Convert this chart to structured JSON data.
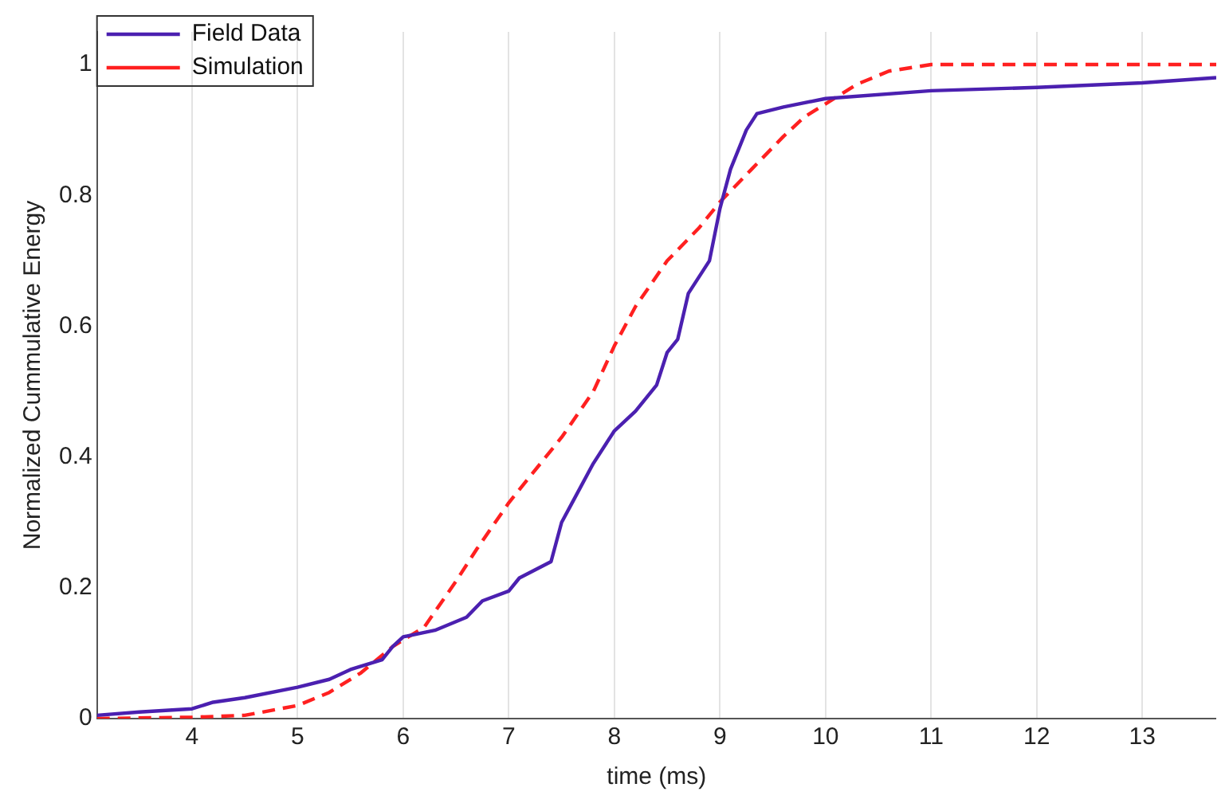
{
  "chart_data": {
    "type": "line",
    "xlabel": "time (ms)",
    "ylabel": "Normalized Cummulative Energy",
    "xlim": [
      3.1,
      13.7
    ],
    "ylim": [
      0,
      1.05
    ],
    "xticks": [
      4,
      5,
      6,
      7,
      8,
      9,
      10,
      11,
      12,
      13
    ],
    "yticks": [
      0,
      0.2,
      0.4,
      0.6,
      0.8,
      1
    ],
    "grid": "x",
    "legend": "top left",
    "marker": "none",
    "series": [
      {
        "name": "Field Data",
        "color": "#4b20b0",
        "line_style": "solid",
        "x": [
          3.1,
          3.5,
          4.0,
          4.2,
          4.5,
          5.0,
          5.3,
          5.5,
          5.8,
          5.9,
          6.0,
          6.3,
          6.6,
          6.75,
          7.0,
          7.1,
          7.4,
          7.5,
          7.6,
          7.8,
          8.0,
          8.2,
          8.4,
          8.5,
          8.6,
          8.7,
          8.9,
          9.0,
          9.1,
          9.25,
          9.35,
          9.6,
          10.0,
          11,
          12,
          13,
          13.7
        ],
        "values": [
          0.005,
          0.01,
          0.015,
          0.025,
          0.032,
          0.048,
          0.06,
          0.075,
          0.09,
          0.11,
          0.125,
          0.135,
          0.155,
          0.18,
          0.195,
          0.215,
          0.24,
          0.3,
          0.33,
          0.39,
          0.44,
          0.47,
          0.51,
          0.56,
          0.58,
          0.65,
          0.7,
          0.78,
          0.84,
          0.9,
          0.925,
          0.935,
          0.948,
          0.96,
          0.965,
          0.972,
          0.98
        ]
      },
      {
        "name": "Simulation",
        "color": "#ff2020",
        "line_style": "dashed",
        "x": [
          3.1,
          4.0,
          4.5,
          5.0,
          5.3,
          5.6,
          5.9,
          6.2,
          6.5,
          6.7,
          7.0,
          7.2,
          7.5,
          7.8,
          8.0,
          8.2,
          8.5,
          8.8,
          9.0,
          9.3,
          9.6,
          9.8,
          10.0,
          10.3,
          10.6,
          11.0,
          12,
          13.7
        ],
        "values": [
          0,
          0.002,
          0.005,
          0.02,
          0.04,
          0.07,
          0.11,
          0.14,
          0.21,
          0.26,
          0.33,
          0.37,
          0.43,
          0.5,
          0.57,
          0.63,
          0.7,
          0.75,
          0.79,
          0.84,
          0.89,
          0.92,
          0.94,
          0.97,
          0.99,
          1.0,
          1.0,
          1.0
        ]
      }
    ]
  }
}
